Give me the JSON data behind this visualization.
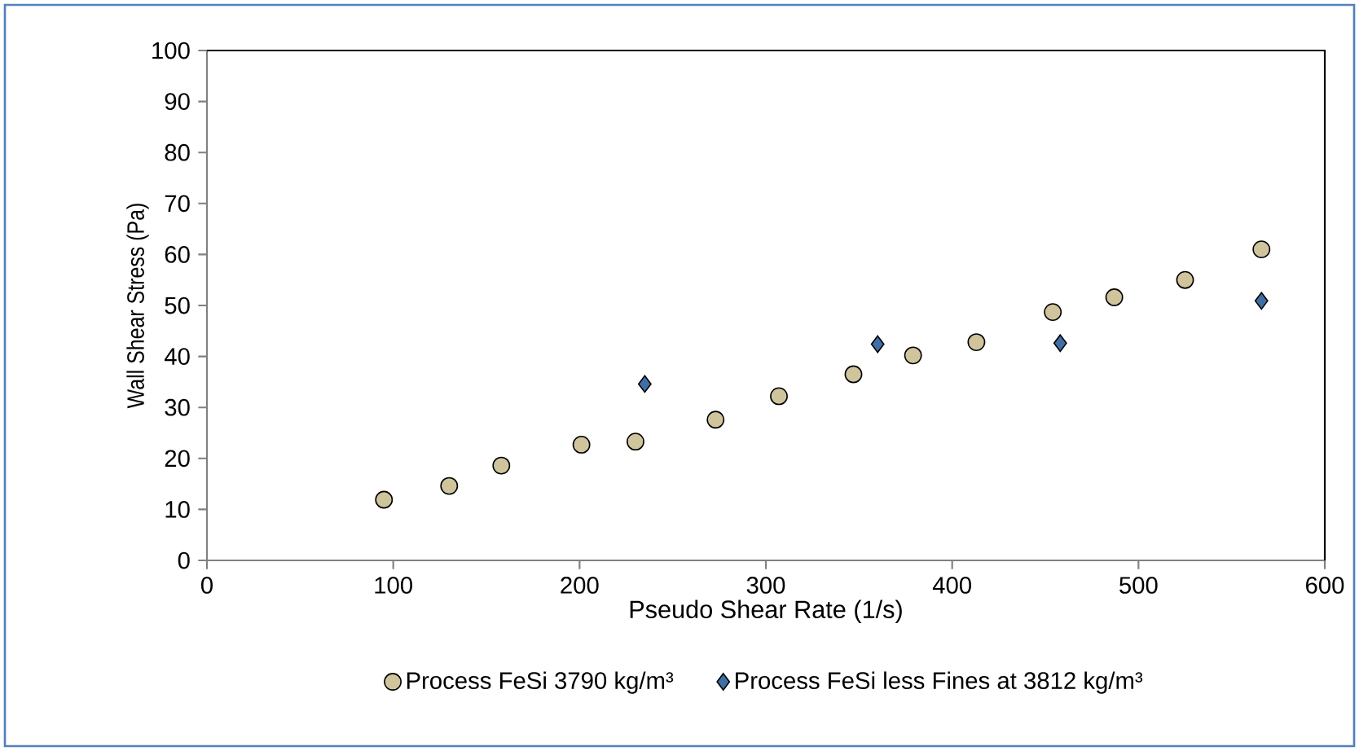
{
  "chart_data": {
    "type": "scatter",
    "xlabel": "Pseudo Shear Rate (1/s)",
    "ylabel": "Wall Shear Stress (Pa)",
    "xlim": [
      0,
      600
    ],
    "xticks": [
      0,
      100,
      200,
      300,
      400,
      500,
      600
    ],
    "ylim": [
      0,
      100
    ],
    "yticks": [
      0,
      10,
      20,
      30,
      40,
      50,
      60,
      70,
      80,
      90,
      100
    ],
    "grid": false,
    "legend": "bottom",
    "series": [
      {
        "name": "Process FeSi 3790 kg/m³",
        "color": "#cfc49c",
        "marker": "circle",
        "x": [
          95,
          130,
          158,
          201,
          230,
          273,
          307,
          347,
          379,
          413,
          454,
          487,
          525,
          566
        ],
        "values": [
          11.9,
          14.6,
          18.6,
          22.7,
          23.3,
          27.6,
          32.2,
          36.5,
          40.2,
          42.8,
          48.7,
          51.6,
          55.0,
          61.0
        ]
      },
      {
        "name": "Process FeSi less Fines at 3812 kg/m³",
        "color": "#3f6fa5",
        "marker": "diamond",
        "x": [
          235,
          360,
          458,
          566
        ],
        "values": [
          34.6,
          42.4,
          42.6,
          50.9
        ]
      }
    ]
  }
}
